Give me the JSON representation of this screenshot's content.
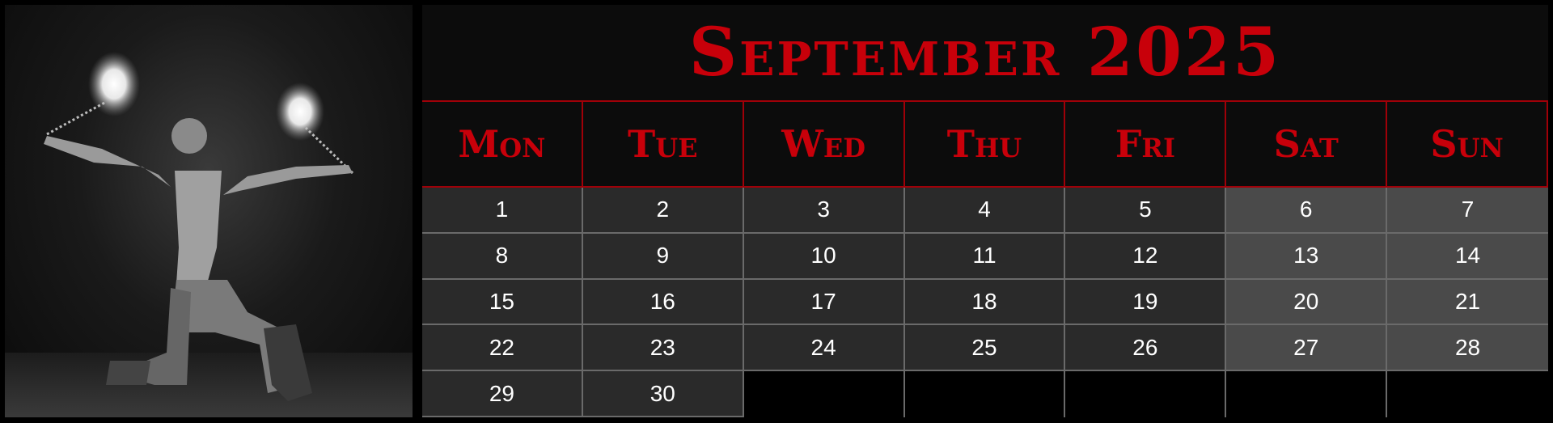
{
  "calendar": {
    "title": "September 2025",
    "weekdays": [
      "Mon",
      "Tue",
      "Wed",
      "Thu",
      "Fri",
      "Sat",
      "Sun"
    ],
    "weeks": [
      [
        "1",
        "2",
        "3",
        "4",
        "5",
        "6",
        "7"
      ],
      [
        "8",
        "9",
        "10",
        "11",
        "12",
        "13",
        "14"
      ],
      [
        "15",
        "16",
        "17",
        "18",
        "19",
        "20",
        "21"
      ],
      [
        "22",
        "23",
        "24",
        "25",
        "26",
        "27",
        "28"
      ],
      [
        "29",
        "30",
        "",
        "",
        "",
        "",
        ""
      ]
    ]
  },
  "photo": {
    "icon": "fire-dancer-photo"
  },
  "colors": {
    "accent": "#c8000a",
    "weekday_bg": "#2a2a2a",
    "weekend_bg": "#4a4a4a"
  }
}
